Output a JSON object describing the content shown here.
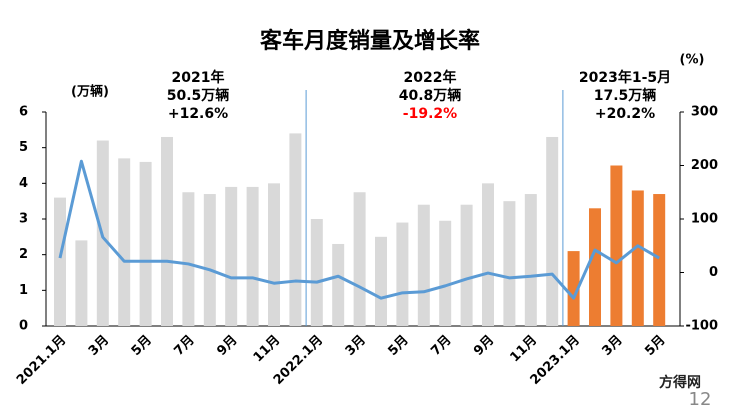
{
  "chart_data": {
    "type": "bar",
    "title": "客车月度销量及增长率",
    "y_unit": "(万辆)",
    "y2_unit": "(%)",
    "categories": [
      "2021.1月",
      null,
      "3月",
      null,
      "5月",
      null,
      "7月",
      null,
      "9月",
      null,
      "11月",
      null,
      "2022.1月",
      null,
      "3月",
      null,
      "5月",
      null,
      "7月",
      null,
      "9月",
      null,
      "11月",
      null,
      "2023.1月",
      null,
      "3月",
      null,
      "5月"
    ],
    "series": [
      {
        "type": "bar",
        "values": [
          3.6,
          2.4,
          5.2,
          4.7,
          4.6,
          5.3,
          3.75,
          3.7,
          3.9,
          3.9,
          4.0,
          5.4,
          3.0,
          2.3,
          3.75,
          2.5,
          2.9,
          3.4,
          2.95,
          3.4,
          4.0,
          3.5,
          3.7,
          5.3,
          2.1,
          3.3,
          4.5,
          3.8,
          3.7
        ],
        "colors": [
          "#d9d9d9",
          "#d9d9d9",
          "#d9d9d9",
          "#d9d9d9",
          "#d9d9d9",
          "#d9d9d9",
          "#d9d9d9",
          "#d9d9d9",
          "#d9d9d9",
          "#d9d9d9",
          "#d9d9d9",
          "#d9d9d9",
          "#d9d9d9",
          "#d9d9d9",
          "#d9d9d9",
          "#d9d9d9",
          "#d9d9d9",
          "#d9d9d9",
          "#d9d9d9",
          "#d9d9d9",
          "#d9d9d9",
          "#d9d9d9",
          "#d9d9d9",
          "#d9d9d9",
          "#ed7d31",
          "#ed7d31",
          "#ed7d31",
          "#ed7d31",
          "#ed7d31"
        ]
      },
      {
        "type": "line",
        "axis": "y2",
        "color": "#5b9bd5",
        "values": [
          27,
          208,
          66,
          21,
          21,
          21,
          16,
          5,
          -10,
          -10,
          -20,
          -16,
          -18,
          -7,
          -27,
          -48,
          -38,
          -36,
          -25,
          -12,
          -1,
          -10,
          -7,
          -3,
          -48,
          42,
          18,
          50,
          27
        ]
      }
    ],
    "ylim": [
      0,
      6
    ],
    "yticks": [
      0,
      1,
      2,
      3,
      4,
      5,
      6
    ],
    "y2lim": [
      -100,
      300
    ],
    "y2ticks": [
      -100,
      0,
      100,
      200,
      300
    ],
    "annotations": [
      {
        "lines": [
          "2021年",
          "50.5万辆",
          "+12.6%"
        ],
        "colors": [
          "#000000",
          "#000000",
          "#000000"
        ]
      },
      {
        "lines": [
          "2022年",
          "40.8万辆",
          "-19.2%"
        ],
        "colors": [
          "#000000",
          "#000000",
          "#ff0000"
        ]
      },
      {
        "lines": [
          "2023年1-5月",
          "17.5万辆",
          "+20.2%"
        ],
        "colors": [
          "#000000",
          "#000000",
          "#000000"
        ]
      }
    ],
    "watermark": "方得网",
    "page_number": "12"
  }
}
